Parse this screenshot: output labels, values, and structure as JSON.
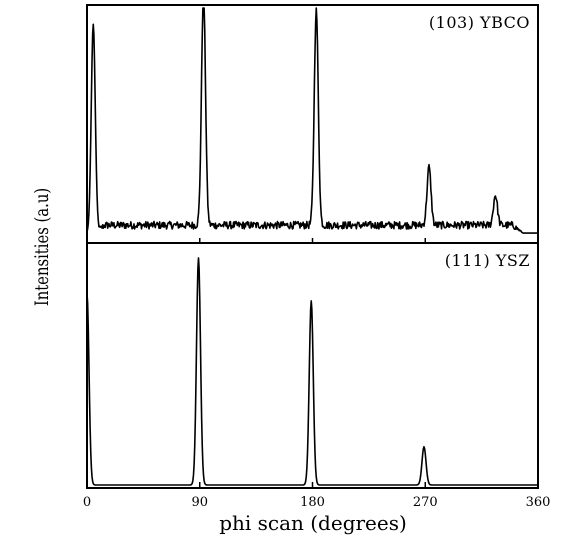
{
  "chart_data": {
    "type": "line",
    "xlabel": "phi scan (degrees)",
    "ylabel": "Intensities (a.u)",
    "xlim": [
      0,
      360
    ],
    "x_ticks": [
      "0",
      "90",
      "180",
      "270",
      "360"
    ],
    "grid": false,
    "legend": "none",
    "panels": [
      {
        "label": "(103) YBCO",
        "y_range": [
          0,
          1
        ],
        "baseline": 0.03,
        "noise_level": 0.05,
        "series": [
          {
            "peaks": [
              {
                "x": 5,
                "height": 0.9
              },
              {
                "x": 93,
                "height": 1.0
              },
              {
                "x": 183,
                "height": 0.93
              },
              {
                "x": 273,
                "height": 0.25
              },
              {
                "x": 326,
                "height": 0.13
              }
            ]
          }
        ]
      },
      {
        "label": "(111) YSZ",
        "y_range": [
          0,
          1
        ],
        "baseline": 0.0,
        "noise_level": 0.0,
        "series": [
          {
            "peaks": [
              {
                "x": 0,
                "height": 0.8
              },
              {
                "x": 89,
                "height": 0.95
              },
              {
                "x": 179,
                "height": 0.77
              },
              {
                "x": 269,
                "height": 0.16
              }
            ]
          }
        ]
      }
    ]
  }
}
